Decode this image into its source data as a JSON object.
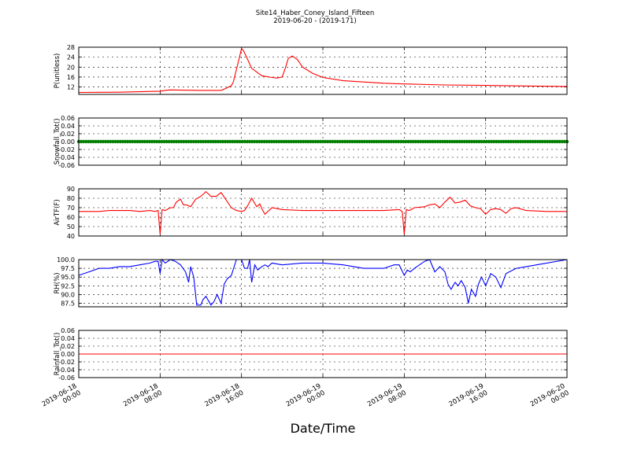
{
  "title_line1": "Site14_Haber_Coney_Island_Fifteen",
  "title_line2": "2019-06-20 - (2019-171)",
  "xlabel": "Date/Time",
  "x_ticks": [
    {
      "t": 0,
      "line1": "2019-06-18",
      "line2": "00:00"
    },
    {
      "t": 8,
      "line1": "2019-06-18",
      "line2": "08:00"
    },
    {
      "t": 16,
      "line1": "2019-06-18",
      "line2": "16:00"
    },
    {
      "t": 24,
      "line1": "2019-06-19",
      "line2": "00:00"
    },
    {
      "t": 32,
      "line1": "2019-06-19",
      "line2": "08:00"
    },
    {
      "t": 40,
      "line1": "2019-06-19",
      "line2": "16:00"
    },
    {
      "t": 48,
      "line1": "2019-06-20",
      "line2": "00:00"
    }
  ],
  "chart_data": [
    {
      "type": "line",
      "ylabel": "P(unitless)",
      "color": "#ff0000",
      "ylim": [
        9,
        28
      ],
      "yticks": [
        "12",
        "16",
        "20",
        "24",
        "28"
      ],
      "ytick_values": [
        12,
        16,
        20,
        24,
        28
      ],
      "marker": "none",
      "x_unit": "hours since 2019-06-18 00:00",
      "x": [
        0,
        4,
        8,
        8.5,
        9,
        10,
        12,
        14,
        14.5,
        15,
        15.2,
        15.5,
        15.8,
        16,
        16.2,
        16.5,
        17,
        18,
        19,
        19.5,
        20,
        20.3,
        20.6,
        21,
        21.5,
        22,
        23,
        24,
        26,
        28,
        30,
        32,
        36,
        40,
        44,
        48
      ],
      "y": [
        9.8,
        9.9,
        10.3,
        10.6,
        10.8,
        10.7,
        10.6,
        10.6,
        11.5,
        12.5,
        14.0,
        19.0,
        24.0,
        27.5,
        26.5,
        24.0,
        19.5,
        16.5,
        15.8,
        15.6,
        16.0,
        19.5,
        23.5,
        24.5,
        23.0,
        20.0,
        17.5,
        15.8,
        14.5,
        14.0,
        13.5,
        13.2,
        12.8,
        12.6,
        12.4,
        12.2
      ]
    },
    {
      "type": "scatter",
      "ylabel": "Snowfall_Tot()",
      "color": "#007f00",
      "ylim": [
        -0.06,
        0.06
      ],
      "yticks": [
        "-0.06",
        "-0.04",
        "-0.02",
        "0.00",
        "0.02",
        "0.04",
        "0.06"
      ],
      "ytick_values": [
        -0.06,
        -0.04,
        -0.02,
        0,
        0.02,
        0.04,
        0.06
      ],
      "marker": "dot",
      "x_unit": "hours since 2019-06-18 00:00",
      "x_range": [
        0,
        48
      ],
      "y_constant": 0.0
    },
    {
      "type": "line",
      "ylabel": "AirTF(F)",
      "color": "#ff0000",
      "ylim": [
        40,
        90
      ],
      "yticks": [
        "40",
        "50",
        "60",
        "70",
        "80",
        "90"
      ],
      "ytick_values": [
        40,
        50,
        60,
        70,
        80,
        90
      ],
      "marker": "none",
      "x_unit": "hours since 2019-06-18 00:00",
      "x": [
        0,
        2,
        3,
        4,
        5,
        6,
        7,
        7.5,
        7.8,
        8.0,
        8.2,
        8.5,
        9,
        9.3,
        9.6,
        10,
        10.3,
        10.6,
        11,
        11.5,
        12,
        12.5,
        13,
        13.5,
        14,
        14.5,
        15,
        15.5,
        16,
        16.3,
        16.6,
        17,
        17.5,
        17.8,
        18,
        18.3,
        19,
        20,
        22,
        24,
        26,
        28,
        30,
        31.5,
        31.8,
        32.0,
        32.2,
        32.5,
        33,
        34,
        34.5,
        35,
        35.5,
        36,
        36.5,
        37,
        37.5,
        38,
        38.5,
        39,
        39.5,
        40,
        40.5,
        41,
        41.5,
        42,
        42.5,
        43,
        44,
        46,
        48
      ],
      "y": [
        66,
        66,
        67,
        67,
        67,
        66,
        67,
        66,
        67,
        42,
        68,
        67,
        70,
        70,
        76,
        79,
        73,
        73,
        71,
        79,
        82,
        87,
        82,
        82,
        86,
        78,
        70,
        67,
        66,
        67,
        72,
        80,
        71,
        74,
        69,
        63,
        70,
        68,
        67,
        67,
        67,
        67,
        67,
        68,
        66,
        42,
        68,
        67,
        70,
        71,
        73,
        74,
        70,
        76,
        81,
        75,
        76,
        78,
        72,
        70,
        69,
        63,
        68,
        69,
        68,
        64,
        69,
        70,
        67,
        66,
        66
      ]
    },
    {
      "type": "line",
      "ylabel": "RH(%)",
      "color": "#0000ff",
      "ylim": [
        86.5,
        100.0
      ],
      "yticks": [
        "87.5",
        "90.0",
        "92.5",
        "95.0",
        "97.5",
        "100.0"
      ],
      "ytick_values": [
        87.5,
        90.0,
        92.5,
        95.0,
        97.5,
        100.0
      ],
      "marker": "none",
      "x_unit": "hours since 2019-06-18 00:00",
      "x": [
        0,
        1,
        2,
        3,
        4,
        5,
        6,
        7,
        7.5,
        7.8,
        8.0,
        8.2,
        8.5,
        9,
        9.5,
        10,
        10.5,
        10.8,
        11,
        11.3,
        11.6,
        12,
        12.2,
        12.5,
        12.8,
        13,
        13.3,
        13.6,
        14,
        14.3,
        14.6,
        15,
        15.5,
        16,
        16.3,
        16.6,
        16.8,
        17,
        17.3,
        17.6,
        18,
        18.3,
        18.6,
        19,
        20,
        22,
        24,
        26,
        28,
        30,
        31,
        31.5,
        32,
        32.3,
        32.6,
        33,
        34,
        34.5,
        35,
        35.5,
        36,
        36.3,
        36.6,
        37,
        37.3,
        37.6,
        38,
        38.3,
        38.6,
        39,
        39.3,
        39.6,
        40,
        40.5,
        41,
        41.5,
        42,
        43,
        44,
        46,
        48
      ],
      "y": [
        95.5,
        96.5,
        97.5,
        97.5,
        98,
        98,
        98.5,
        99,
        99.5,
        99.5,
        96,
        100,
        99,
        100,
        99.5,
        98.5,
        96.5,
        93.5,
        98,
        95,
        87,
        87,
        88.5,
        89.5,
        88,
        87,
        88,
        90,
        87.5,
        93,
        94.5,
        95.5,
        100,
        100,
        97.5,
        97.5,
        100,
        93.5,
        98.5,
        97,
        98,
        98.5,
        98,
        99,
        98.5,
        99,
        99,
        98.5,
        97.5,
        97.5,
        98.5,
        98.5,
        95.5,
        97,
        96.5,
        97.5,
        99.5,
        100,
        96.5,
        98,
        96.5,
        93,
        91.5,
        93.5,
        92.5,
        94,
        92,
        87.5,
        91.5,
        89.5,
        93,
        95,
        92.5,
        96,
        95,
        92,
        96,
        97.5,
        98,
        99,
        100
      ]
    },
    {
      "type": "line",
      "ylabel": "Rainfall_Tot()",
      "color": "#ff0000",
      "ylim": [
        -0.06,
        0.06
      ],
      "yticks": [
        "-0.06",
        "-0.04",
        "-0.02",
        "0.00",
        "0.02",
        "0.04",
        "0.06"
      ],
      "ytick_values": [
        -0.06,
        -0.04,
        -0.02,
        0,
        0.02,
        0.04,
        0.06
      ],
      "marker": "none",
      "x_unit": "hours since 2019-06-18 00:00",
      "x": [
        0,
        48
      ],
      "y": [
        0.0,
        0.0
      ]
    }
  ]
}
